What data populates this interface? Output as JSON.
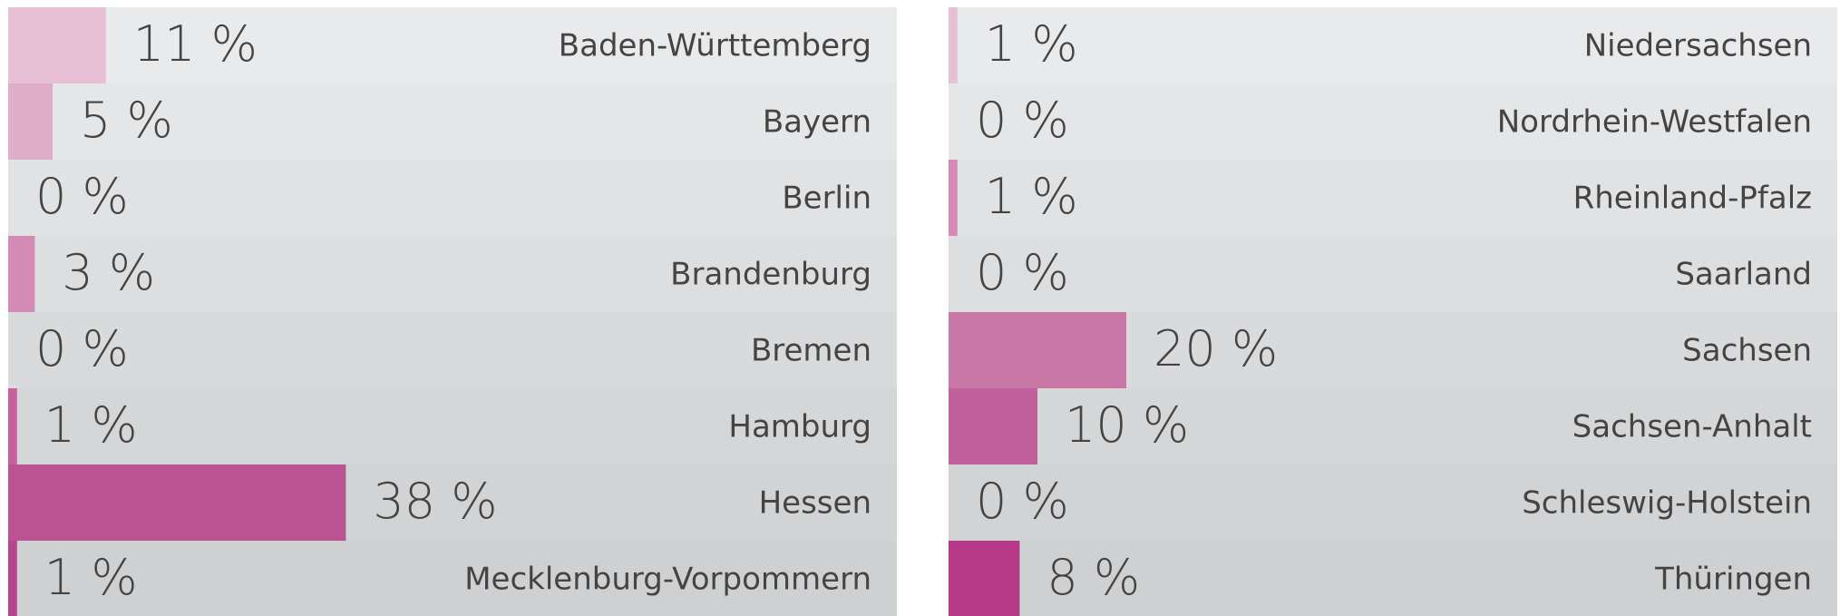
{
  "chart_data": [
    {
      "type": "bar",
      "orientation": "horizontal",
      "xlim": [
        0,
        100
      ],
      "categories": [
        "Baden-Württemberg",
        "Bayern",
        "Berlin",
        "Brandenburg",
        "Bremen",
        "Hamburg",
        "Hessen",
        "Mecklenburg-Vorpommern"
      ],
      "values": [
        11,
        5,
        0,
        3,
        0,
        1,
        38,
        1
      ],
      "value_labels": [
        "11 %",
        "5 %",
        "0 %",
        "3 %",
        "0 %",
        "1 %",
        "38 %",
        "1 %"
      ],
      "colors": [
        "#e8c0d6",
        "#dfadc9",
        "#d99dc0",
        "#d48ab5",
        "#ce76aa",
        "#c9609e",
        "#bb5393",
        "#b8468d"
      ]
    },
    {
      "type": "bar",
      "orientation": "horizontal",
      "xlim": [
        0,
        100
      ],
      "categories": [
        "Niedersachsen",
        "Nordrhein-Westfalen",
        "Rheinland-Pfalz",
        "Saarland",
        "Sachsen",
        "Sachsen-Anhalt",
        "Schleswig-Holstein",
        "Thüringen"
      ],
      "values": [
        1,
        0,
        1,
        0,
        20,
        10,
        0,
        8
      ],
      "value_labels": [
        "1 %",
        "0 %",
        "1 %",
        "0 %",
        "20 %",
        "10 %",
        "0 %",
        "8 %"
      ],
      "colors": [
        "#e6c0d5",
        "#dda6c6",
        "#d58ab5",
        "#cf82b0",
        "#c877a6",
        "#c0609c",
        "#bb4e93",
        "#b73a88"
      ]
    }
  ]
}
